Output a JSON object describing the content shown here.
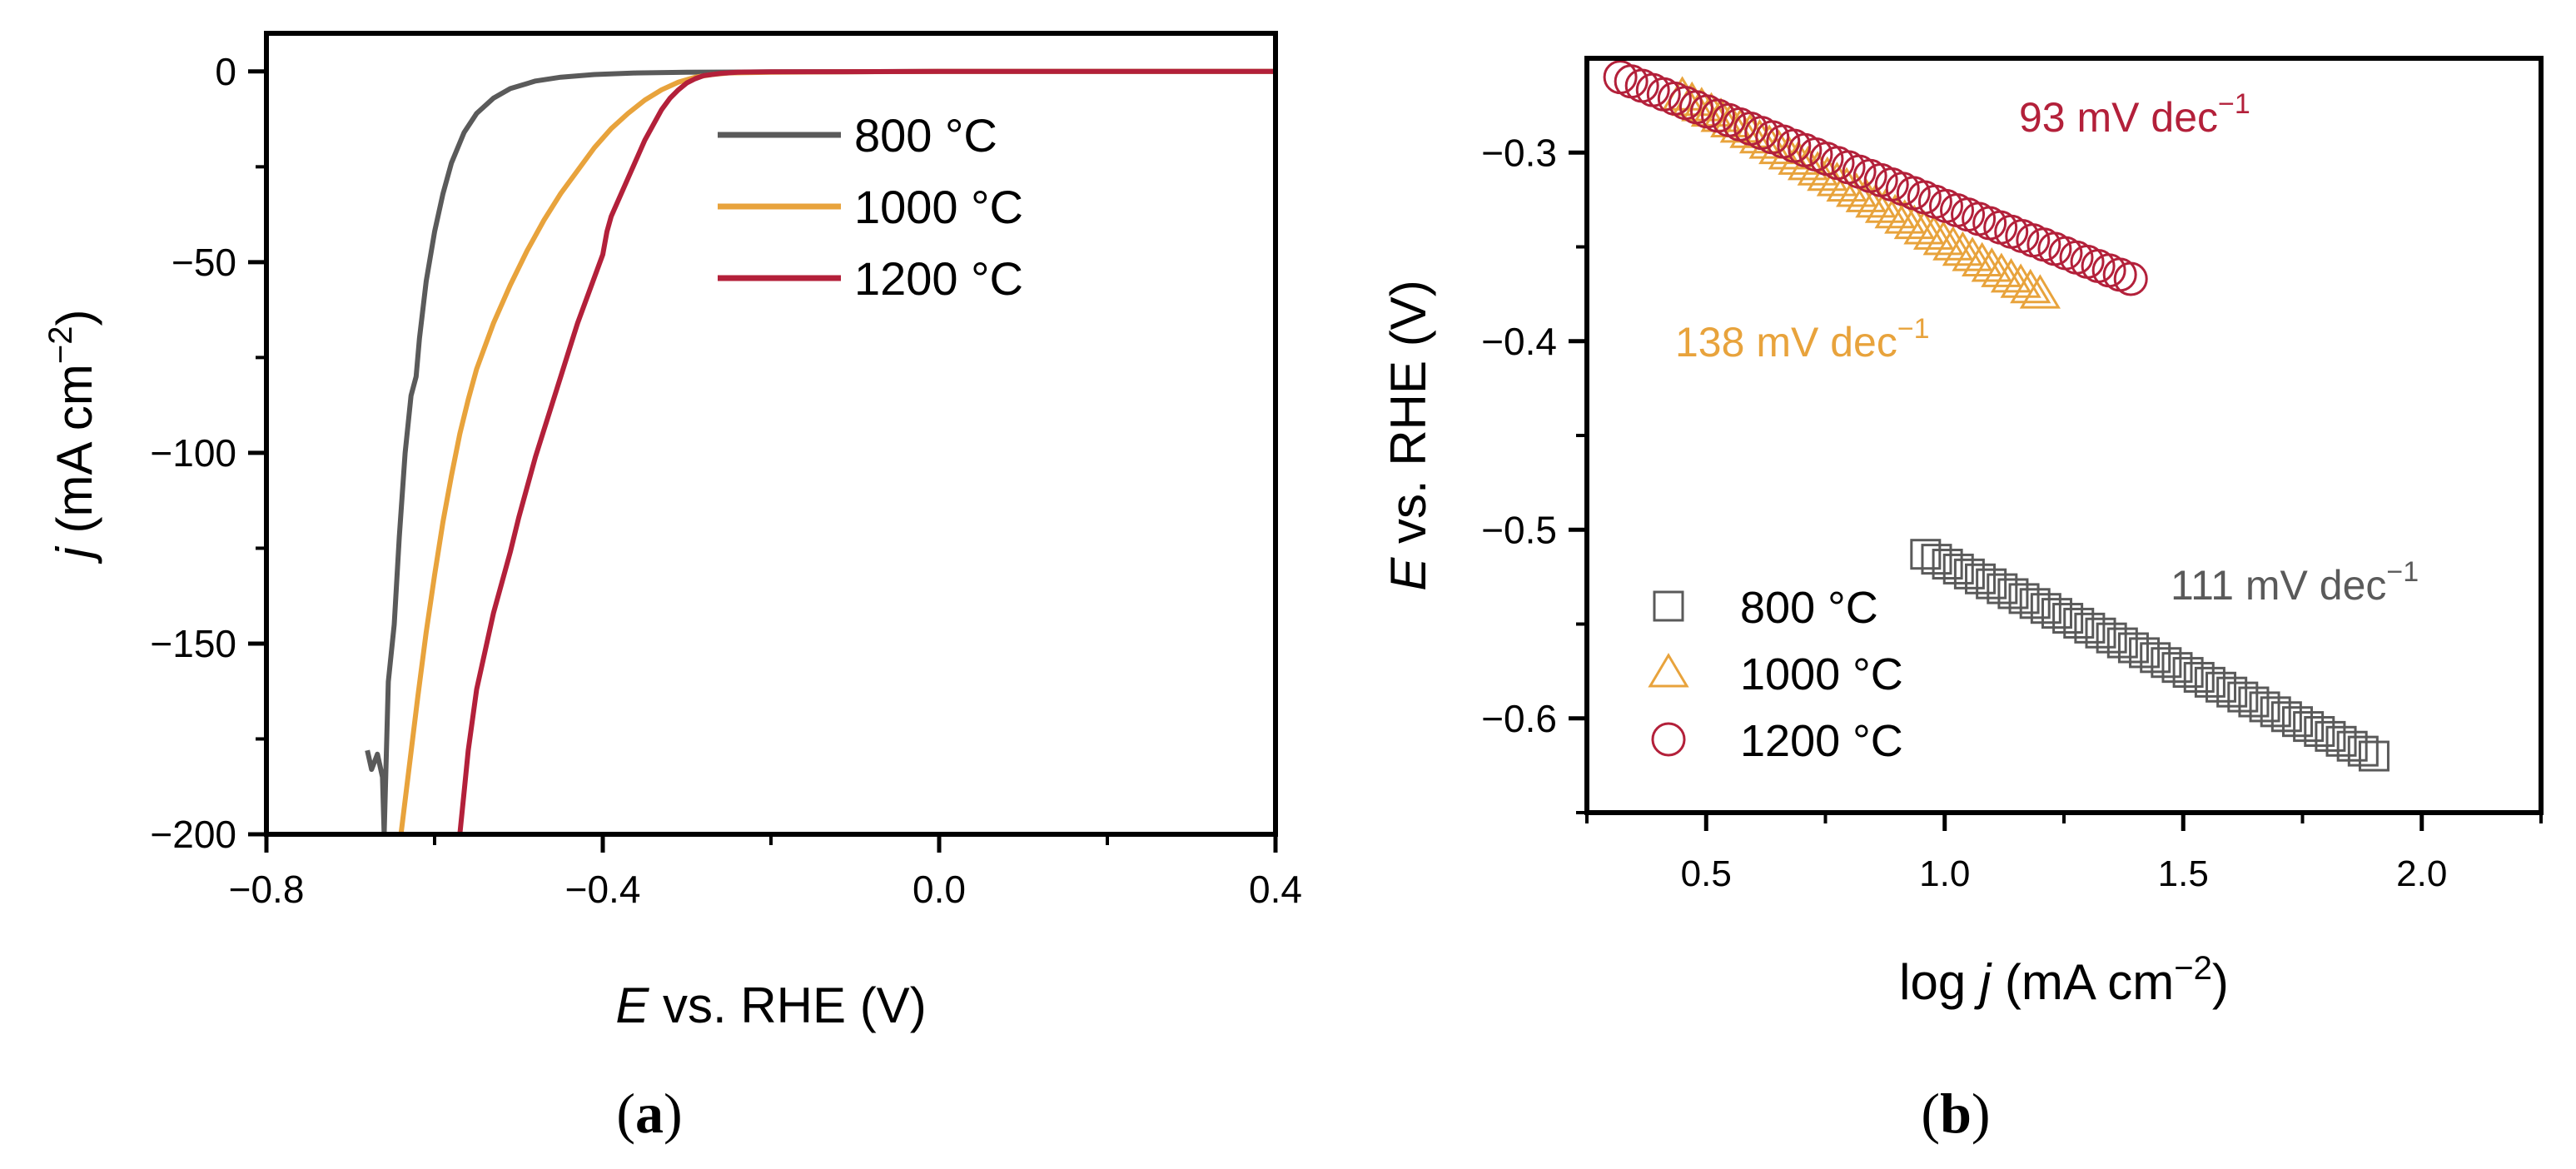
{
  "chart_data": [
    {
      "panel": "a",
      "type": "line",
      "panel_label": "(a)",
      "xlabel_italic": "E",
      "xlabel_rest": " vs. RHE (V)",
      "ylabel_italic": "j",
      "ylabel_rest": " (mA cm",
      "ylabel_sup": "−2",
      "ylabel_close": ")",
      "xlim": [
        -0.8,
        0.4
      ],
      "ylim": [
        -200,
        10
      ],
      "xticks": [
        -0.8,
        -0.4,
        0.0,
        0.4
      ],
      "xtick_labels": [
        "−0.8",
        "−0.4",
        "0.0",
        "0.4"
      ],
      "yticks": [
        0,
        -50,
        -100,
        -150,
        -200
      ],
      "ytick_labels": [
        "0",
        "−50",
        "−100",
        "−150",
        "−200"
      ],
      "legend_position": "top-right",
      "series": [
        {
          "name": "800 °C",
          "color": "#5a5a5a",
          "x": [
            -0.68,
            -0.675,
            -0.668,
            -0.662,
            -0.66,
            -0.655,
            -0.648,
            -0.642,
            -0.635,
            -0.628,
            -0.622,
            -0.618,
            -0.61,
            -0.6,
            -0.59,
            -0.58,
            -0.565,
            -0.55,
            -0.53,
            -0.51,
            -0.48,
            -0.45,
            -0.41,
            -0.36,
            -0.3,
            -0.2,
            0.0,
            0.2,
            0.4
          ],
          "y": [
            -178,
            -183,
            -179,
            -185,
            -200,
            -160,
            -145,
            -122,
            -100,
            -85,
            -80,
            -70,
            -55,
            -42,
            -32,
            -24,
            -16,
            -11,
            -7,
            -4.5,
            -2.5,
            -1.5,
            -0.8,
            -0.4,
            -0.2,
            -0.1,
            0,
            0,
            0
          ]
        },
        {
          "name": "1000 °C",
          "color": "#e8a33c",
          "x": [
            -0.64,
            -0.63,
            -0.62,
            -0.61,
            -0.6,
            -0.59,
            -0.58,
            -0.57,
            -0.56,
            -0.55,
            -0.53,
            -0.51,
            -0.49,
            -0.47,
            -0.45,
            -0.43,
            -0.41,
            -0.39,
            -0.37,
            -0.35,
            -0.33,
            -0.31,
            -0.29,
            -0.27,
            -0.25,
            -0.2,
            0.0,
            0.2,
            0.4
          ],
          "y": [
            -200,
            -182,
            -164,
            -147,
            -132,
            -118,
            -106,
            -95,
            -86,
            -78,
            -66,
            -56,
            -47,
            -39,
            -32,
            -26,
            -20,
            -15,
            -11,
            -7.5,
            -4.8,
            -2.8,
            -1.5,
            -0.8,
            -0.4,
            -0.2,
            0,
            0,
            0
          ]
        },
        {
          "name": "1200 °C",
          "color": "#b3203a",
          "x": [
            -0.57,
            -0.565,
            -0.56,
            -0.55,
            -0.54,
            -0.53,
            -0.52,
            -0.51,
            -0.5,
            -0.49,
            -0.48,
            -0.47,
            -0.46,
            -0.45,
            -0.44,
            -0.43,
            -0.42,
            -0.41,
            -0.4,
            -0.395,
            -0.39,
            -0.38,
            -0.37,
            -0.36,
            -0.35,
            -0.34,
            -0.33,
            -0.32,
            -0.31,
            -0.3,
            -0.29,
            -0.28,
            -0.26,
            -0.24,
            -0.2,
            0.0,
            0.2,
            0.4
          ],
          "y": [
            -200,
            -189,
            -178,
            -162,
            -152,
            -142,
            -134,
            -126,
            -117,
            -109,
            -101,
            -94,
            -87,
            -80,
            -73,
            -66,
            -60,
            -54,
            -48,
            -42,
            -38,
            -33,
            -28,
            -23,
            -18,
            -14,
            -10,
            -7,
            -4.8,
            -3,
            -1.9,
            -1.1,
            -0.5,
            -0.2,
            -0.1,
            0,
            0,
            0
          ]
        }
      ]
    },
    {
      "panel": "b",
      "type": "scatter",
      "panel_label": "(b)",
      "xlabel_plain": "log ",
      "xlabel_italic": "j",
      "xlabel_rest": " (mA cm",
      "xlabel_sup": "−2",
      "xlabel_close": ")",
      "ylabel_italic": "E",
      "ylabel_rest": " vs. RHE (V)",
      "xlim": [
        0.25,
        2.25
      ],
      "ylim": [
        -0.65,
        -0.25
      ],
      "xticks": [
        0.5,
        1.0,
        1.5,
        2.0
      ],
      "xtick_labels": [
        "0.5",
        "1.0",
        "1.5",
        "2.0"
      ],
      "yticks": [
        -0.3,
        -0.4,
        -0.5,
        -0.6
      ],
      "ytick_labels": [
        "−0.3",
        "−0.4",
        "−0.5",
        "−0.6"
      ],
      "legend_position": "bottom-left",
      "series": [
        {
          "name": "800 °C",
          "marker": "square",
          "color": "#5a5a5a",
          "x_start": 0.96,
          "x_end": 1.9,
          "y_start": -0.513,
          "y_end": -0.62,
          "count": 42,
          "slope_label": "111 mV dec",
          "slope_sup": "−1"
        },
        {
          "name": "1000 °C",
          "marker": "triangle",
          "color": "#e8a33c",
          "x_start": 0.45,
          "x_end": 1.2,
          "y_start": -0.27,
          "y_end": -0.375,
          "count": 38,
          "slope_label": "138 mV dec",
          "slope_sup": "−1"
        },
        {
          "name": "1200 °C",
          "marker": "circle",
          "color": "#b3203a",
          "x_start": 0.32,
          "x_end": 1.39,
          "y_start": -0.26,
          "y_end": -0.367,
          "count": 48,
          "slope_label": "93 mV dec",
          "slope_sup": "−1"
        }
      ]
    }
  ]
}
